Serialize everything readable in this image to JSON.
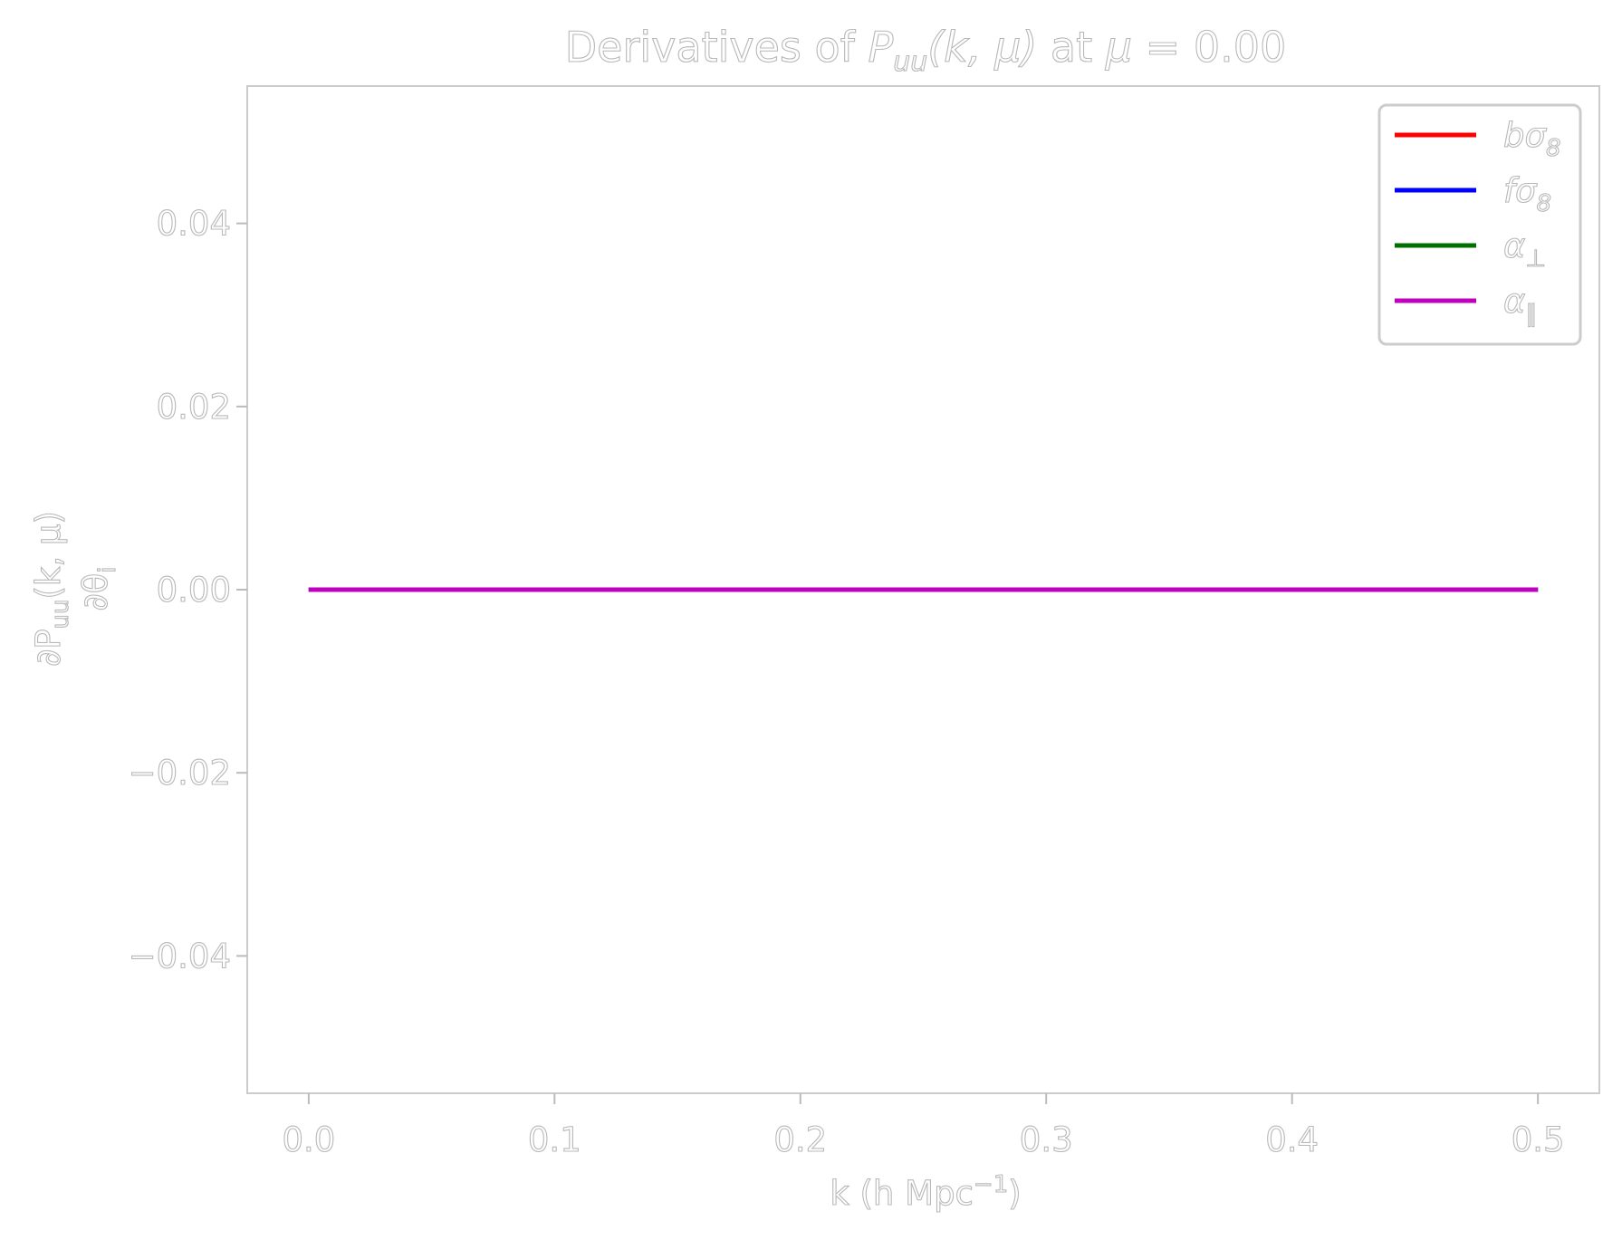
{
  "chart_data": {
    "type": "line",
    "title": "Derivatives of P_uu(k, μ) at μ = 0.00",
    "title_parts": {
      "prefix": "Derivatives of ",
      "P": "P",
      "P_sub": "uu",
      "args": "(k, μ)",
      "mid": " at ",
      "mu": "μ",
      "equals": " = 0.00"
    },
    "xlabel": "k (h Mpc⁻¹)",
    "xlabel_parts": {
      "base": "k (h Mpc",
      "sup": "−1",
      "close": ")"
    },
    "ylabel": "∂P_uu(k, μ) / ∂θ_i",
    "ylabel_parts": {
      "num_base": "∂P",
      "num_sub": "uu",
      "num_args": "(k, μ)",
      "den_base": "∂θ",
      "den_sub": "i"
    },
    "xlim": [
      -0.025,
      0.525
    ],
    "ylim": [
      -0.055,
      0.055
    ],
    "xticks": [
      0.0,
      0.1,
      0.2,
      0.3,
      0.4,
      0.5
    ],
    "xtick_labels": [
      "0.0",
      "0.1",
      "0.2",
      "0.3",
      "0.4",
      "0.5"
    ],
    "yticks": [
      -0.04,
      -0.02,
      0.0,
      0.02,
      0.04
    ],
    "ytick_labels": [
      "−0.04",
      "−0.02",
      "0.00",
      "0.02",
      "0.04"
    ],
    "grid": false,
    "legend_position": "top-right",
    "series": [
      {
        "name": "bσ₈",
        "name_base": "bσ",
        "name_sub": "8",
        "color": "#ff0000",
        "x": [
          0.0,
          0.5
        ],
        "y": [
          0.0,
          0.0
        ]
      },
      {
        "name": "fσ₈",
        "name_base": "fσ",
        "name_sub": "8",
        "color": "#0000ff",
        "x": [
          0.0,
          0.5
        ],
        "y": [
          0.0,
          0.0
        ]
      },
      {
        "name": "α⊥",
        "name_base": "α",
        "name_sub": "⊥",
        "color": "#007000",
        "x": [
          0.0,
          0.5
        ],
        "y": [
          0.0,
          0.0
        ]
      },
      {
        "name": "α∥",
        "name_base": "α",
        "name_sub": "∥",
        "color": "#bf00bf",
        "x": [
          0.0,
          0.5
        ],
        "y": [
          0.0,
          0.0
        ]
      }
    ]
  }
}
